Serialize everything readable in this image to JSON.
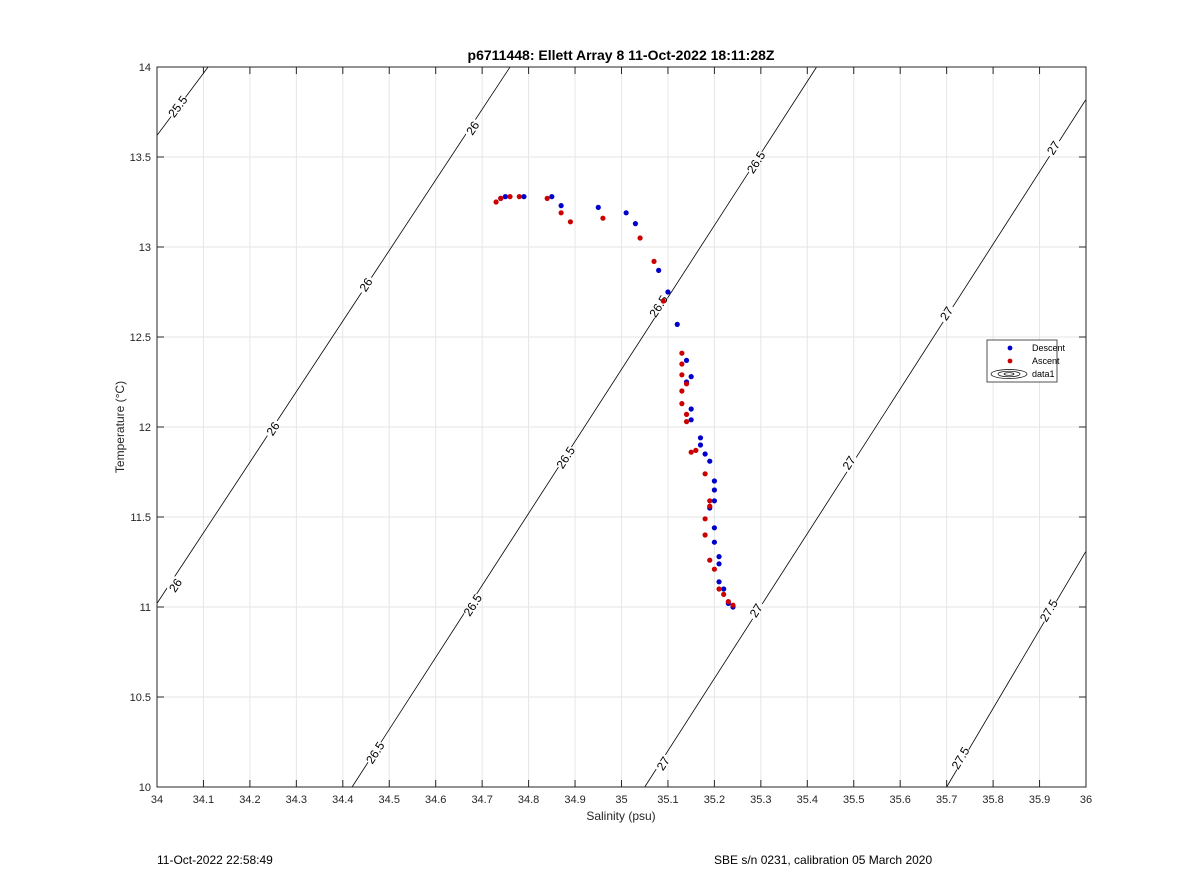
{
  "chart_data": {
    "type": "scatter",
    "title": "p6711448: Ellett Array 8 11-Oct-2022 18:11:28Z",
    "xlabel": "Salinity (psu)",
    "ylabel": "Temperature (°C)",
    "xlim": [
      34,
      36
    ],
    "ylim": [
      10,
      14
    ],
    "x_ticks": [
      34,
      34.1,
      34.2,
      34.3,
      34.4,
      34.5,
      34.6,
      34.7,
      34.8,
      34.9,
      35,
      35.1,
      35.2,
      35.3,
      35.4,
      35.5,
      35.6,
      35.7,
      35.8,
      35.9,
      36
    ],
    "x_tick_labels": [
      "34",
      "34.1",
      "34.2",
      "34.3",
      "34.4",
      "34.5",
      "34.6",
      "34.7",
      "34.8",
      "34.9",
      "35",
      "35.1",
      "35.2",
      "35.3",
      "35.4",
      "35.5",
      "35.6",
      "35.7",
      "35.8",
      "35.9",
      "36"
    ],
    "y_ticks": [
      10,
      10.5,
      11,
      11.5,
      12,
      12.5,
      13,
      13.5,
      14
    ],
    "y_tick_labels": [
      "10",
      "10.5",
      "11",
      "11.5",
      "12",
      "12.5",
      "13",
      "13.5",
      "14"
    ],
    "grid": true,
    "legend_position": "right",
    "series": [
      {
        "name": "Descent",
        "color": "#0000cc",
        "points": [
          [
            34.74,
            13.27
          ],
          [
            34.75,
            13.28
          ],
          [
            34.79,
            13.28
          ],
          [
            34.85,
            13.28
          ],
          [
            34.87,
            13.23
          ],
          [
            34.95,
            13.22
          ],
          [
            35.01,
            13.19
          ],
          [
            35.03,
            13.13
          ],
          [
            35.08,
            12.87
          ],
          [
            35.1,
            12.75
          ],
          [
            35.12,
            12.57
          ],
          [
            35.14,
            12.37
          ],
          [
            35.15,
            12.28
          ],
          [
            35.14,
            12.25
          ],
          [
            35.15,
            12.1
          ],
          [
            35.15,
            12.04
          ],
          [
            35.17,
            11.94
          ],
          [
            35.17,
            11.9
          ],
          [
            35.18,
            11.85
          ],
          [
            35.19,
            11.81
          ],
          [
            35.2,
            11.7
          ],
          [
            35.2,
            11.65
          ],
          [
            35.2,
            11.59
          ],
          [
            35.19,
            11.55
          ],
          [
            35.2,
            11.44
          ],
          [
            35.2,
            11.36
          ],
          [
            35.21,
            11.28
          ],
          [
            35.21,
            11.24
          ],
          [
            35.21,
            11.14
          ],
          [
            35.22,
            11.1
          ],
          [
            35.23,
            11.02
          ],
          [
            35.24,
            11.0
          ]
        ]
      },
      {
        "name": "Ascent",
        "color": "#cc0000",
        "points": [
          [
            34.73,
            13.25
          ],
          [
            34.74,
            13.27
          ],
          [
            34.76,
            13.28
          ],
          [
            34.78,
            13.28
          ],
          [
            34.84,
            13.27
          ],
          [
            34.87,
            13.19
          ],
          [
            34.89,
            13.14
          ],
          [
            34.96,
            13.16
          ],
          [
            35.04,
            13.05
          ],
          [
            35.07,
            12.92
          ],
          [
            35.09,
            12.7
          ],
          [
            35.13,
            12.41
          ],
          [
            35.13,
            12.35
          ],
          [
            35.13,
            12.29
          ],
          [
            35.14,
            12.24
          ],
          [
            35.13,
            12.2
          ],
          [
            35.13,
            12.13
          ],
          [
            35.14,
            12.07
          ],
          [
            35.14,
            12.03
          ],
          [
            35.16,
            11.87
          ],
          [
            35.15,
            11.86
          ],
          [
            35.18,
            11.74
          ],
          [
            35.19,
            11.59
          ],
          [
            35.19,
            11.56
          ],
          [
            35.18,
            11.49
          ],
          [
            35.18,
            11.4
          ],
          [
            35.19,
            11.26
          ],
          [
            35.2,
            11.21
          ],
          [
            35.21,
            11.1
          ],
          [
            35.22,
            11.07
          ],
          [
            35.23,
            11.03
          ],
          [
            35.24,
            11.01
          ]
        ]
      }
    ],
    "legend_extra": "data1",
    "contour_color": "#000000",
    "contours": [
      {
        "level": "25.5",
        "segment": [
          [
            34,
            13.62
          ],
          [
            34.11,
            14.0
          ]
        ],
        "labels": [
          [
            34.045,
            13.78
          ]
        ]
      },
      {
        "level": "26",
        "segment": [
          [
            34,
            11.02
          ],
          [
            34.76,
            14.0
          ]
        ],
        "labels": [
          [
            34.04,
            11.12
          ],
          [
            34.25,
            11.99
          ],
          [
            34.45,
            12.79
          ],
          [
            34.68,
            13.66
          ]
        ]
      },
      {
        "level": "26.5",
        "segment": [
          [
            34.42,
            10.0
          ],
          [
            35.42,
            14.0
          ]
        ],
        "labels": [
          [
            34.47,
            10.19
          ],
          [
            34.68,
            11.01
          ],
          [
            34.88,
            11.83
          ],
          [
            35.08,
            12.67
          ],
          [
            35.29,
            13.47
          ]
        ]
      },
      {
        "level": "27",
        "segment": [
          [
            35.05,
            10.0
          ],
          [
            36.0,
            13.82
          ]
        ],
        "labels": [
          [
            35.09,
            10.13
          ],
          [
            35.29,
            10.98
          ],
          [
            35.49,
            11.8
          ],
          [
            35.7,
            12.63
          ],
          [
            35.93,
            13.55
          ]
        ]
      },
      {
        "level": "27.5",
        "segment": [
          [
            35.7,
            10.0
          ],
          [
            36.0,
            11.31
          ]
        ],
        "labels": [
          [
            35.73,
            10.16
          ],
          [
            35.92,
            10.98
          ]
        ]
      }
    ]
  },
  "footer": {
    "left": "11-Oct-2022 22:58:49",
    "right": "SBE s/n 0231, calibration 05 March 2020"
  }
}
